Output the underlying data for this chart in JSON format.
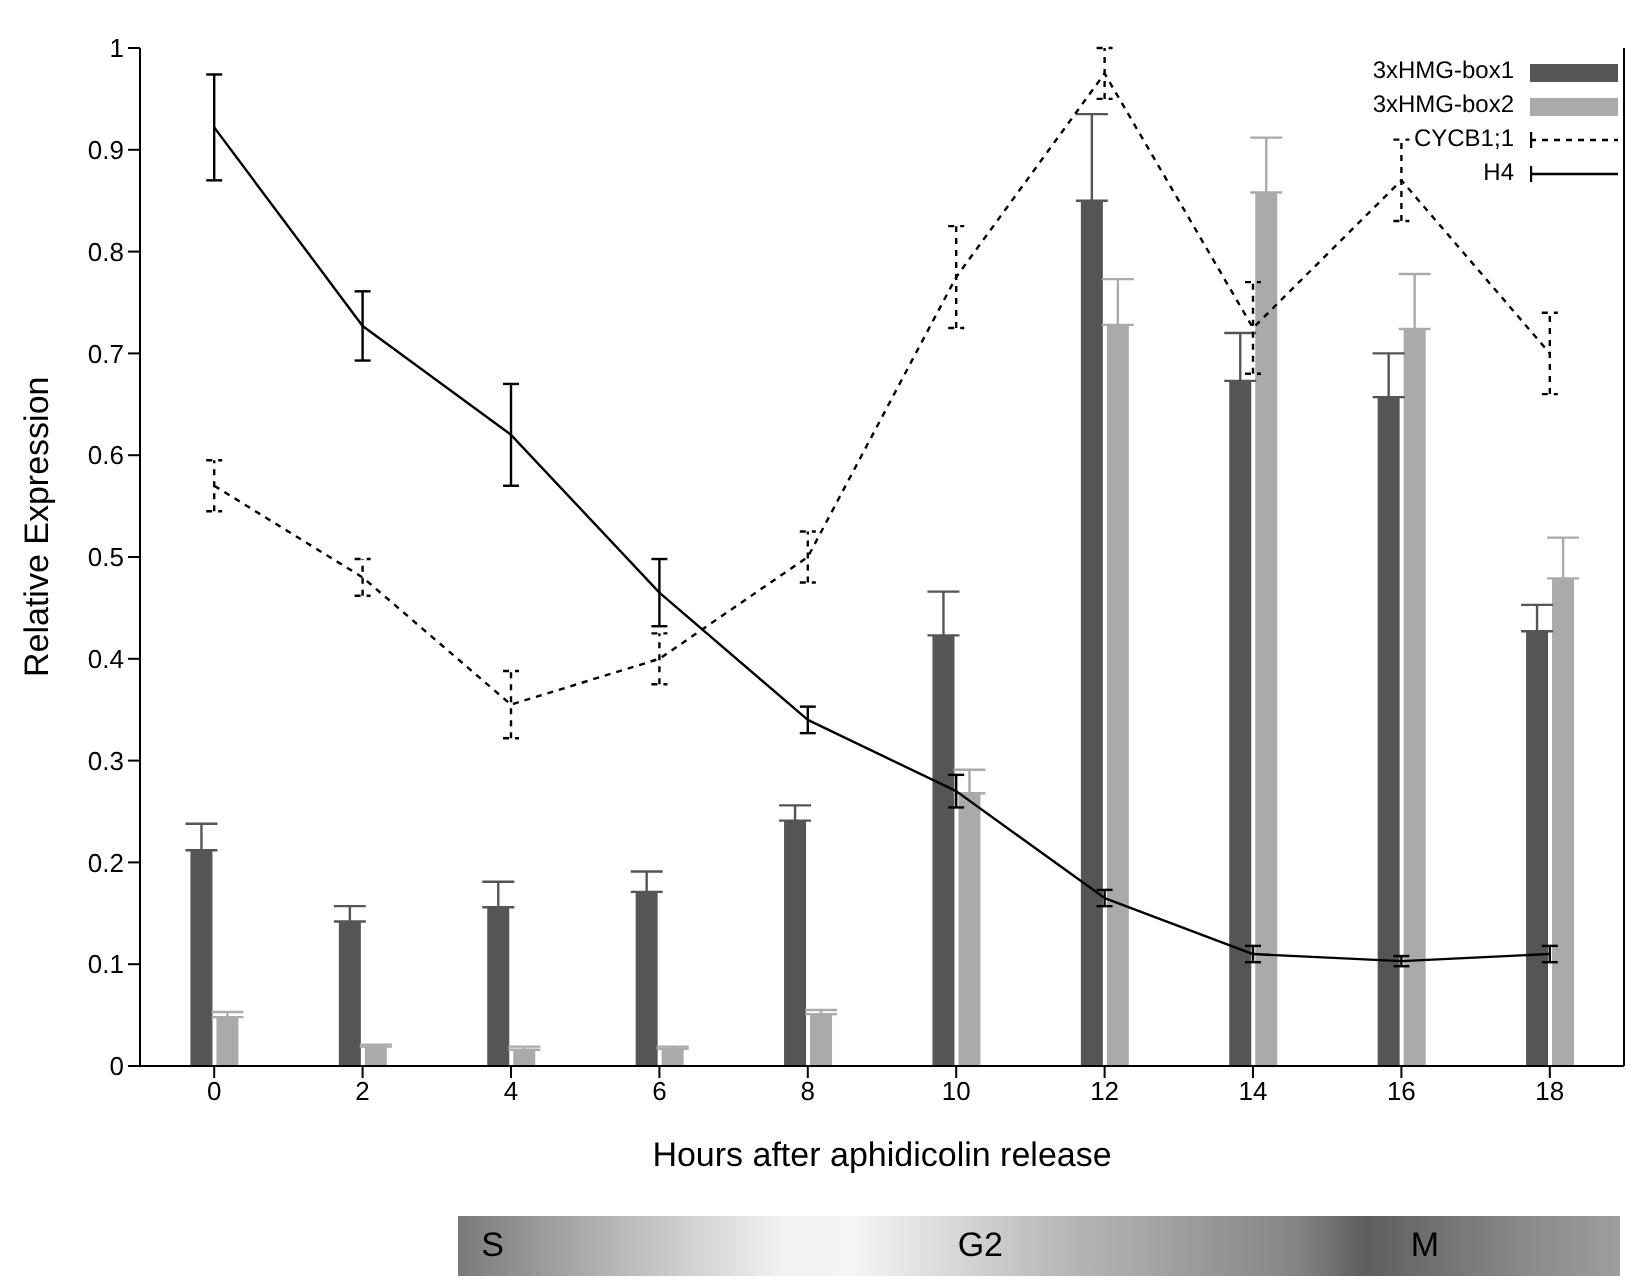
{
  "chart_data": {
    "type": "bar",
    "xlabel": "Hours after aphidicolin release",
    "ylabel": "Relative Expression",
    "categories": [
      "0",
      "2",
      "4",
      "6",
      "8",
      "10",
      "12",
      "14",
      "16",
      "18"
    ],
    "series": [
      {
        "name": "3xHMG-box1",
        "color": "#555555",
        "values": [
          0.212,
          0.142,
          0.156,
          0.171,
          0.241,
          0.423,
          0.85,
          0.673,
          0.657,
          0.427
        ],
        "errors": [
          [
            0.212,
            0.238
          ],
          [
            0.142,
            0.157
          ],
          [
            0.156,
            0.181
          ],
          [
            0.171,
            0.191
          ],
          [
            0.241,
            0.256
          ],
          [
            0.423,
            0.466
          ],
          [
            0.85,
            0.935
          ],
          [
            0.673,
            0.72
          ],
          [
            0.657,
            0.7
          ],
          [
            0.427,
            0.453
          ]
        ]
      },
      {
        "name": "3xHMG-box2",
        "color": "#aaaaaa",
        "values": [
          0.048,
          0.019,
          0.016,
          0.017,
          0.051,
          0.268,
          0.728,
          0.858,
          0.724,
          0.479
        ],
        "errors": [
          [
            0.048,
            0.053
          ],
          [
            0.019,
            0.021
          ],
          [
            0.016,
            0.019
          ],
          [
            0.017,
            0.019
          ],
          [
            0.051,
            0.055
          ],
          [
            0.268,
            0.291
          ],
          [
            0.728,
            0.773
          ],
          [
            0.858,
            0.912
          ],
          [
            0.724,
            0.778
          ],
          [
            0.479,
            0.519
          ]
        ]
      },
      {
        "name": "CYCB1;1",
        "type": "line",
        "line_style": "dashed",
        "color": "#000000",
        "values": [
          0.57,
          0.48,
          0.355,
          0.4,
          0.5,
          0.775,
          0.975,
          0.725,
          0.87,
          0.7
        ],
        "errors": [
          0.025,
          0.018,
          0.033,
          0.025,
          0.025,
          0.05,
          0.025,
          0.045,
          0.04,
          0.04
        ]
      },
      {
        "name": "H4",
        "type": "line",
        "line_style": "solid",
        "color": "#000000",
        "values": [
          0.922,
          0.727,
          0.62,
          0.465,
          0.34,
          0.27,
          0.165,
          0.11,
          0.103,
          0.11
        ],
        "errors": [
          0.052,
          0.034,
          0.05,
          0.033,
          0.013,
          0.016,
          0.008,
          0.008,
          0.005,
          0.008
        ]
      }
    ],
    "ylim": [
      0,
      1
    ],
    "yticks": [
      0,
      0.1,
      0.2,
      0.3,
      0.4,
      0.5,
      0.6,
      0.7,
      0.8,
      0.9,
      1
    ],
    "grid": false,
    "legend": "top right",
    "marker": "none",
    "annotations": [
      "S",
      "G2",
      "M"
    ]
  }
}
